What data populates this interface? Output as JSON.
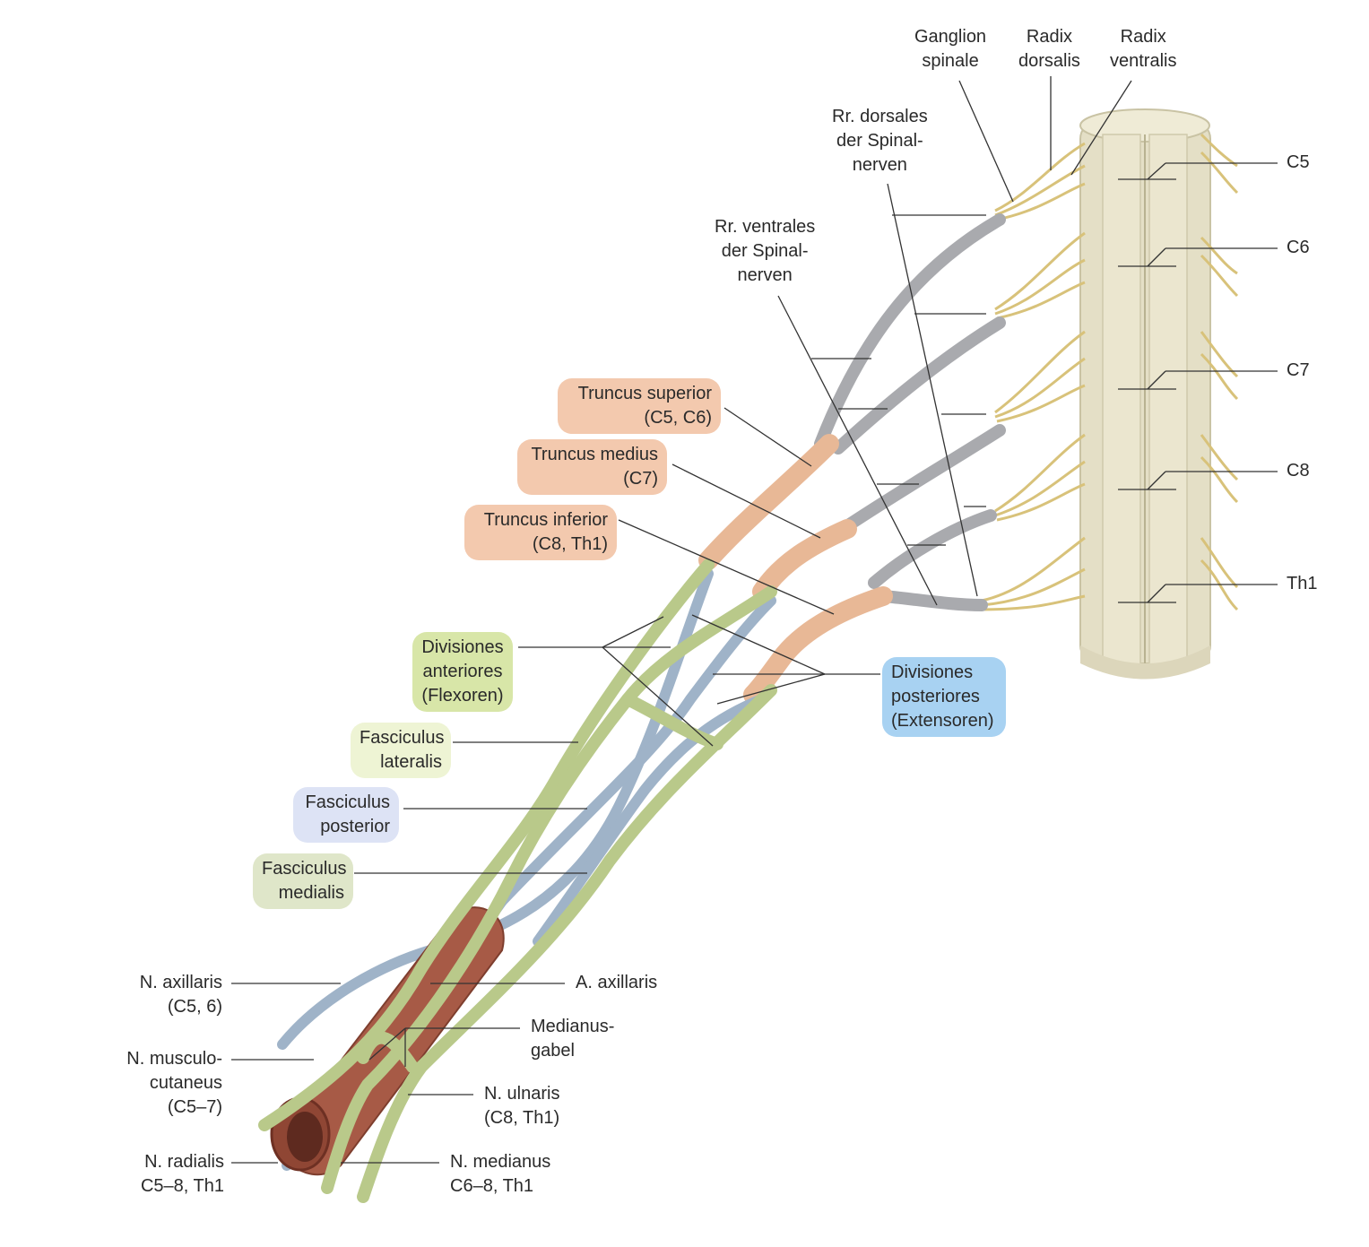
{
  "labels": {
    "ganglion_spinale": [
      "Ganglion",
      "spinale"
    ],
    "radix_dorsalis": [
      "Radix",
      "dorsalis"
    ],
    "radix_ventralis": [
      "Radix",
      "ventralis"
    ],
    "rr_dorsales": [
      "Rr. dorsales",
      "der Spinal-",
      "nerven"
    ],
    "rr_ventrales": [
      "Rr. ventrales",
      "der Spinal-",
      "nerven"
    ],
    "truncus_superior": [
      "Truncus superior",
      "(C5, C6)"
    ],
    "truncus_medius": [
      "Truncus medius",
      "(C7)"
    ],
    "truncus_inferior": [
      "Truncus inferior",
      "(C8, Th1)"
    ],
    "divisiones_anteriores": [
      "Divisiones",
      "anteriores",
      "(Flexoren)"
    ],
    "divisiones_posteriores": [
      "Divisiones",
      "posteriores",
      "(Extensoren)"
    ],
    "fasciculus_lateralis": [
      "Fasciculus",
      "lateralis"
    ],
    "fasciculus_posterior": [
      "Fasciculus",
      "posterior"
    ],
    "fasciculus_medialis": [
      "Fasciculus",
      "medialis"
    ],
    "n_axillaris": [
      "N. axillaris",
      "(C5, 6)"
    ],
    "a_axillaris": [
      "A. axillaris"
    ],
    "medianusgabel": [
      "Medianus-",
      "gabel"
    ],
    "n_musculocutaneus": [
      "N. musculo-",
      "cutaneus",
      "(C5–7)"
    ],
    "n_ulnaris": [
      "N. ulnaris",
      "(C8, Th1)"
    ],
    "n_radialis": [
      "N. radialis",
      "C5–8, Th1"
    ],
    "n_medianus": [
      "N. medianus",
      "C6–8, Th1"
    ],
    "segments": [
      "C5",
      "C6",
      "C7",
      "C8",
      "Th1"
    ]
  },
  "colors": {
    "spinal_cord": "#e4dfc6",
    "nerve_roots": "#e2cf8a",
    "ventral_ramus": "#a9aaae",
    "truncus": "#e8b896",
    "anterior_division": "#b9c98a",
    "posterior_division": "#9fb3c8",
    "artery": "#a75a46",
    "box_truncus": "#f3c9ae",
    "box_anterior": "#d8e6a8",
    "box_posterior": "#a8d2f2"
  }
}
